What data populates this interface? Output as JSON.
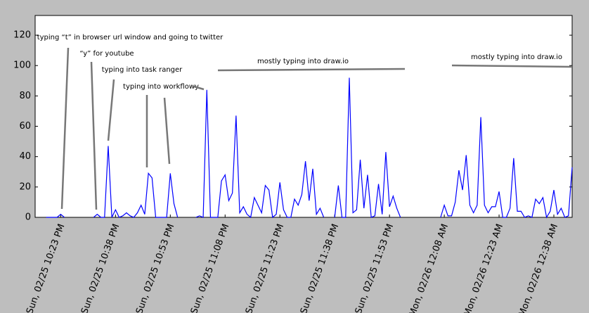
{
  "chart_data": {
    "type": "line",
    "categories": [
      null,
      null,
      null,
      null,
      null,
      null,
      null,
      "Sun, 02/25 10:23 PM",
      null,
      null,
      null,
      null,
      null,
      null,
      null,
      null,
      null,
      null,
      null,
      null,
      null,
      null,
      "Sun, 02/25 10:38 PM",
      null,
      null,
      null,
      null,
      null,
      null,
      null,
      null,
      null,
      null,
      null,
      null,
      null,
      null,
      "Sun, 02/25 10:53 PM",
      null,
      null,
      null,
      null,
      null,
      null,
      null,
      null,
      null,
      null,
      null,
      null,
      null,
      null,
      "Sun, 02/25 11:08 PM",
      null,
      null,
      null,
      null,
      null,
      null,
      null,
      null,
      null,
      null,
      null,
      null,
      null,
      null,
      "Sun, 02/25 11:23 PM",
      null,
      null,
      null,
      null,
      null,
      null,
      null,
      null,
      null,
      null,
      null,
      null,
      null,
      null,
      "Sun, 02/25 11:38 PM",
      null,
      null,
      null,
      null,
      null,
      null,
      null,
      null,
      null,
      null,
      null,
      null,
      null,
      null,
      "Sun, 02/25 11:53 PM",
      null,
      null,
      null,
      null,
      null,
      null,
      null,
      null,
      null,
      null,
      null,
      null,
      null,
      null,
      "Mon, 02/26 12:08 AM",
      null,
      null,
      null,
      null,
      null,
      null,
      null,
      null,
      null,
      null,
      null,
      null,
      null,
      null,
      "Mon, 02/26 12:23 AM",
      null,
      null,
      null,
      null,
      null,
      null,
      null,
      null,
      null,
      null,
      null,
      null,
      null,
      null,
      "Mon, 02/26 12:38 AM",
      null,
      null,
      null,
      null,
      null
    ],
    "values": [
      null,
      null,
      null,
      0,
      0,
      0,
      0,
      2,
      0,
      null,
      null,
      null,
      null,
      null,
      null,
      null,
      0,
      2,
      0,
      0,
      47,
      0,
      5,
      0,
      1,
      3,
      1,
      0,
      3,
      8,
      2,
      29,
      26,
      0,
      0,
      0,
      0,
      29,
      9,
      0,
      null,
      null,
      null,
      null,
      0,
      1,
      0,
      84,
      0,
      0,
      0,
      24,
      28,
      11,
      16,
      67,
      3,
      7,
      2,
      0,
      13,
      8,
      3,
      21,
      18,
      0,
      2,
      23,
      5,
      0,
      0,
      12,
      8,
      15,
      37,
      11,
      32,
      2,
      6,
      0,
      null,
      null,
      0,
      21,
      0,
      0,
      92,
      3,
      5,
      38,
      6,
      28,
      0,
      1,
      22,
      2,
      43,
      7,
      14,
      6,
      0,
      null,
      null,
      null,
      null,
      null,
      null,
      null,
      null,
      null,
      null,
      0,
      8,
      1,
      1,
      10,
      31,
      18,
      41,
      8,
      3,
      8,
      66,
      8,
      3,
      7,
      7,
      17,
      0,
      0,
      6,
      39,
      4,
      4,
      0,
      1,
      0,
      12,
      9,
      13,
      0,
      4,
      18,
      2,
      6,
      0,
      1,
      33
    ],
    "color": "#0000ff",
    "ylim": [
      0,
      133
    ],
    "yticks": [
      0,
      20,
      40,
      60,
      80,
      100,
      120
    ],
    "annotations": [
      "typing “t” in browser url window and going to twitter",
      "“y” for youtube",
      "typing into task ranger",
      "typing into workflowy",
      "mostly typing into draw.io",
      "mostly typing into draw.io"
    ]
  }
}
